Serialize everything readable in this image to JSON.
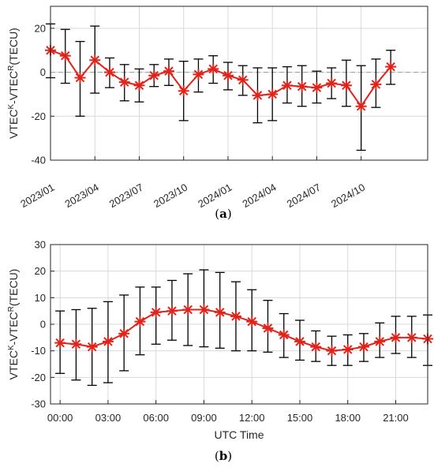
{
  "chart_data": [
    {
      "type": "line",
      "panel_label": "a",
      "ylabel": {
        "pre1": "VTEC",
        "sup1": "K",
        "pre2": "-VTEC",
        "sup2": "R",
        "post": "(TECU)"
      },
      "xlabel": "",
      "ylim": [
        -40,
        30
      ],
      "yticks": [
        -40,
        -20,
        0,
        20
      ],
      "xlim": [
        0,
        25.5
      ],
      "xticks": [
        {
          "x": 0,
          "label": "2023/01"
        },
        {
          "x": 3,
          "label": "2023/04"
        },
        {
          "x": 6,
          "label": "2023/07"
        },
        {
          "x": 9,
          "label": "2023/10"
        },
        {
          "x": 12,
          "label": "2024/01"
        },
        {
          "x": 15,
          "label": "2024/04"
        },
        {
          "x": 18,
          "label": "2024/07"
        },
        {
          "x": 21,
          "label": "2024/10"
        }
      ],
      "grid": true,
      "zero_line": true,
      "tick_rotation": -30,
      "series": [
        {
          "x": [
            0,
            1,
            2,
            3,
            4,
            5,
            6,
            7,
            8,
            9,
            10,
            11,
            12,
            13,
            14,
            15,
            16,
            17,
            18,
            19,
            20,
            21,
            22,
            23
          ],
          "values": [
            10,
            7.5,
            -2.5,
            5.5,
            0,
            -4.5,
            -6,
            -1.5,
            0.5,
            -8.5,
            -1,
            1.5,
            -1.5,
            -3.5,
            -10.5,
            -10,
            -6,
            -6.5,
            -7,
            -5,
            -6,
            -15.5,
            -5.5,
            2.5
          ],
          "err_low": [
            -2.5,
            -5,
            -20,
            -9.5,
            -7,
            -13,
            -13.5,
            -6.5,
            -6,
            -22,
            -9,
            -5,
            -8,
            -10.5,
            -23,
            -22,
            -14,
            -15.5,
            -14,
            -12,
            -15.5,
            -35.5,
            -16,
            -5.5
          ],
          "err_high": [
            22,
            19.5,
            14,
            21,
            6.5,
            3.5,
            1.5,
            3.5,
            6,
            5,
            6,
            7.5,
            4.5,
            3,
            2,
            2,
            2.5,
            3,
            0.5,
            2,
            5.5,
            3,
            6,
            10
          ]
        }
      ],
      "colors": {
        "line": "#e0241b",
        "error_bar": "#000000",
        "grid": "#d9d9d9",
        "zero_line": "#a6a6a6"
      }
    },
    {
      "type": "line",
      "panel_label": "b",
      "ylabel": {
        "pre1": "VTEC",
        "sup1": "K",
        "pre2": "-VTEC",
        "sup2": "R",
        "post": "(TECU)"
      },
      "xlabel": "UTC Time",
      "ylim": [
        -30,
        30
      ],
      "yticks": [
        -30,
        -20,
        -10,
        0,
        10,
        20,
        30
      ],
      "xlim": [
        -0.6,
        23
      ],
      "xticks": [
        {
          "x": 0,
          "label": "00:00"
        },
        {
          "x": 3,
          "label": "03:00"
        },
        {
          "x": 6,
          "label": "06:00"
        },
        {
          "x": 9,
          "label": "09:00"
        },
        {
          "x": 12,
          "label": "12:00"
        },
        {
          "x": 15,
          "label": "15:00"
        },
        {
          "x": 18,
          "label": "18:00"
        },
        {
          "x": 21,
          "label": "21:00"
        }
      ],
      "grid": true,
      "zero_line": false,
      "tick_rotation": 0,
      "series": [
        {
          "x": [
            0,
            1,
            2,
            3,
            4,
            5,
            6,
            7,
            8,
            9,
            10,
            11,
            12,
            13,
            14,
            15,
            16,
            17,
            18,
            19,
            20,
            21,
            22,
            23
          ],
          "values": [
            -7,
            -7.5,
            -8.5,
            -6.5,
            -3.5,
            1,
            4.5,
            5,
            5.5,
            5.5,
            4.5,
            3,
            1,
            -1.5,
            -4,
            -6.5,
            -8.5,
            -10,
            -9.5,
            -8.5,
            -6.5,
            -5,
            -5,
            -5.5
          ],
          "err_low": [
            -18.5,
            -21,
            -23,
            -22,
            -17.5,
            -11.5,
            -7.5,
            -6,
            -8,
            -8.5,
            -9,
            -10,
            -10,
            -10.5,
            -12.5,
            -13.5,
            -14,
            -15.5,
            -15.5,
            -14,
            -12.5,
            -11,
            -12.5,
            -15.5
          ],
          "err_high": [
            5,
            5.5,
            6,
            8.5,
            11,
            14,
            14,
            16.5,
            19,
            20.5,
            19.5,
            16,
            13,
            9,
            4,
            1.5,
            -2.5,
            -4.5,
            -4,
            -3.5,
            0.5,
            3,
            3,
            3.5
          ]
        }
      ],
      "colors": {
        "line": "#e0241b",
        "error_bar": "#000000",
        "grid": "#d9d9d9",
        "zero_line": "#a6a6a6"
      }
    }
  ]
}
